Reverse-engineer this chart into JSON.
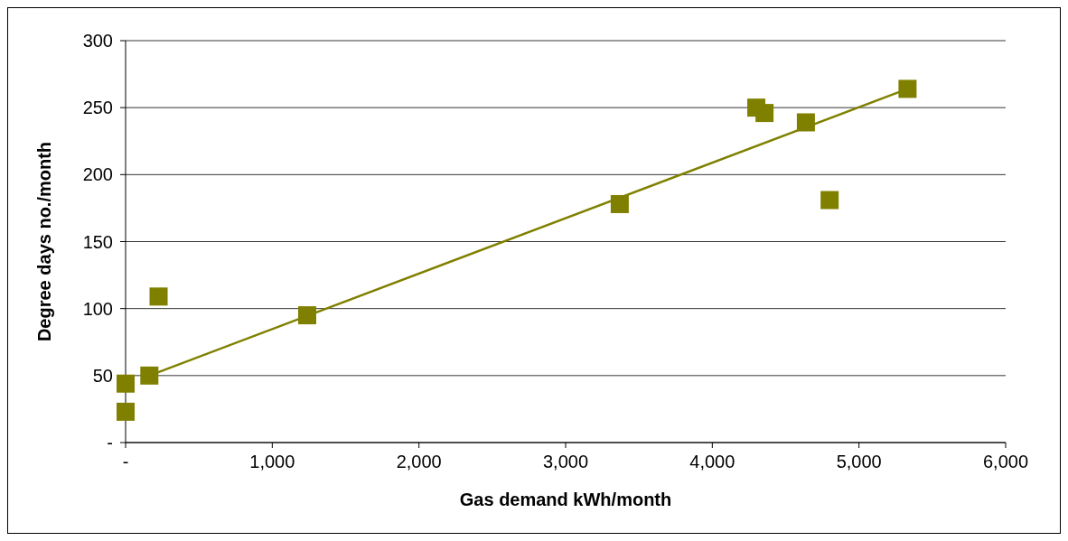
{
  "chart_data": {
    "type": "scatter",
    "xlabel": "Gas demand kWh/month",
    "ylabel": "Degree days no./month",
    "series": [
      {
        "type": "scatter",
        "color": "#808000",
        "x": [
          0,
          0,
          162,
          225,
          1238,
          3369,
          4300,
          4356,
          4638,
          4800,
          5331
        ],
        "values": [
          23,
          44,
          50,
          109,
          95,
          178,
          250,
          246,
          239,
          181,
          264
        ],
        "marker": "square"
      },
      {
        "type": "line",
        "color": "#808000",
        "x": [
          162,
          5331
        ],
        "values": [
          50,
          264
        ],
        "marker": "none"
      }
    ],
    "xlim": [
      0,
      6000
    ],
    "xticks": [
      {
        "value": 0,
        "label": "-"
      },
      {
        "value": 1000,
        "label": "1,000"
      },
      {
        "value": 2000,
        "label": "2,000"
      },
      {
        "value": 3000,
        "label": "3,000"
      },
      {
        "value": 4000,
        "label": "4,000"
      },
      {
        "value": 5000,
        "label": "5,000"
      },
      {
        "value": 6000,
        "label": "6,000"
      }
    ],
    "ylim": [
      0,
      300
    ],
    "yticks": [
      {
        "value": 0,
        "label": "-"
      },
      50,
      100,
      150,
      200,
      250,
      300
    ],
    "grid": "y",
    "legend": false
  }
}
